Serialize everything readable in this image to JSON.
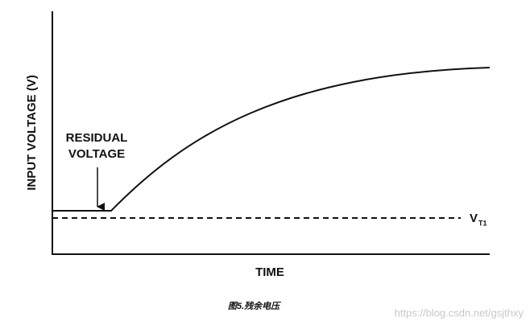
{
  "y_label": "INPUT VOLTAGE (V)",
  "x_label": "TIME",
  "annotation": {
    "lines": [
      "RESIDUAL",
      "VOLTAGE"
    ]
  },
  "threshold": {
    "symbol": "V",
    "subscript": "T1"
  },
  "caption": "图5.残余电压",
  "watermark": "https://blog.csdn.net/gsjthxy"
}
